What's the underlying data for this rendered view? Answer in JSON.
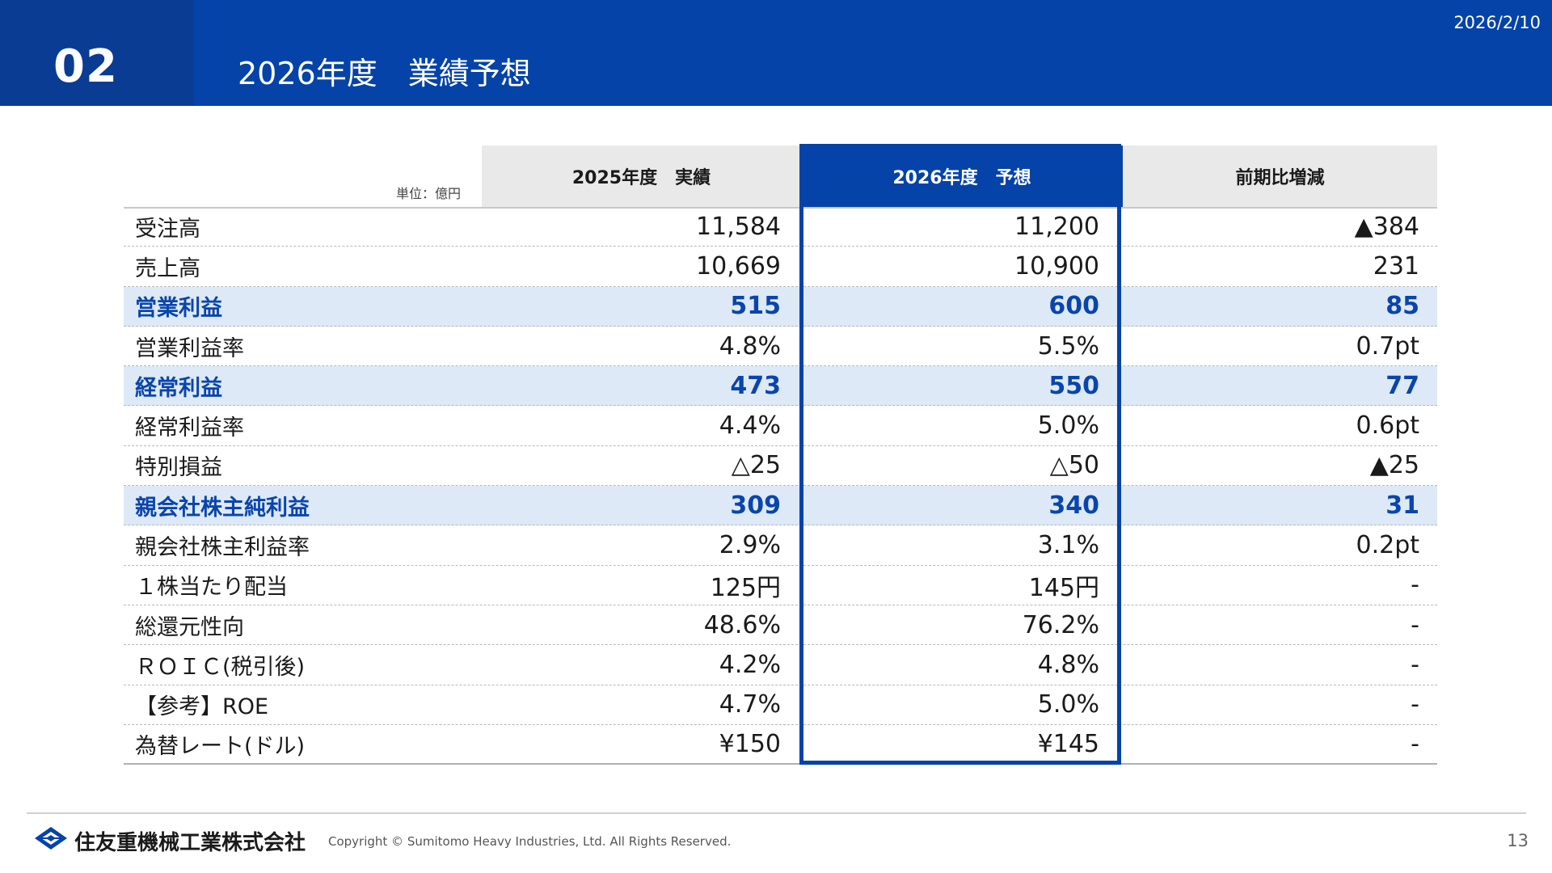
{
  "header": {
    "section_number": "02",
    "title": "2026年度　業績予想",
    "date": "2026/2/10",
    "background_color": "#0543a8"
  },
  "table": {
    "unit_label": "単位：億円",
    "columns": [
      "2025年度　実績",
      "2026年度　予想",
      "前期比増減"
    ],
    "highlight_color": "#0a45ac",
    "rows": [
      {
        "label": "受注高",
        "actual_2025": "11,584",
        "forecast_2026": "11,200",
        "change": "▲384",
        "highlight": false
      },
      {
        "label": "売上高",
        "actual_2025": "10,669",
        "forecast_2026": "10,900",
        "change": "231",
        "highlight": false
      },
      {
        "label": "営業利益",
        "actual_2025": "515",
        "forecast_2026": "600",
        "change": "85",
        "highlight": true
      },
      {
        "label": "営業利益率",
        "actual_2025": "4.8%",
        "forecast_2026": "5.5%",
        "change": "0.7pt",
        "highlight": false
      },
      {
        "label": "経常利益",
        "actual_2025": "473",
        "forecast_2026": "550",
        "change": "77",
        "highlight": true
      },
      {
        "label": "経常利益率",
        "actual_2025": "4.4%",
        "forecast_2026": "5.0%",
        "change": "0.6pt",
        "highlight": false
      },
      {
        "label": "特別損益",
        "actual_2025": "△25",
        "forecast_2026": "△50",
        "change": "▲25",
        "highlight": false
      },
      {
        "label": "親会社株主純利益",
        "actual_2025": "309",
        "forecast_2026": "340",
        "change": "31",
        "highlight": true
      },
      {
        "label": "親会社株主利益率",
        "actual_2025": "2.9%",
        "forecast_2026": "3.1%",
        "change": "0.2pt",
        "highlight": false
      },
      {
        "label": "１株当たり配当",
        "actual_2025": "125円",
        "forecast_2026": "145円",
        "change": "-",
        "highlight": false
      },
      {
        "label": "総還元性向",
        "actual_2025": "48.6%",
        "forecast_2026": "76.2%",
        "change": "-",
        "highlight": false
      },
      {
        "label": "ＲＯＩＣ(税引後)",
        "actual_2025": "4.2%",
        "forecast_2026": "4.8%",
        "change": "-",
        "highlight": false
      },
      {
        "label": "【参考】ROE",
        "actual_2025": "4.7%",
        "forecast_2026": "5.0%",
        "change": "-",
        "highlight": false
      },
      {
        "label": "為替レート(ドル)",
        "actual_2025": "¥150",
        "forecast_2026": "¥145",
        "change": "-",
        "highlight": false
      }
    ]
  },
  "footer": {
    "logo_icon": "sumitomo-diamond-logo-icon",
    "company_name": "住友重機械工業株式会社",
    "copyright": "Copyright © Sumitomo Heavy Industries, Ltd. All Rights Reserved.",
    "page_number": "13"
  }
}
